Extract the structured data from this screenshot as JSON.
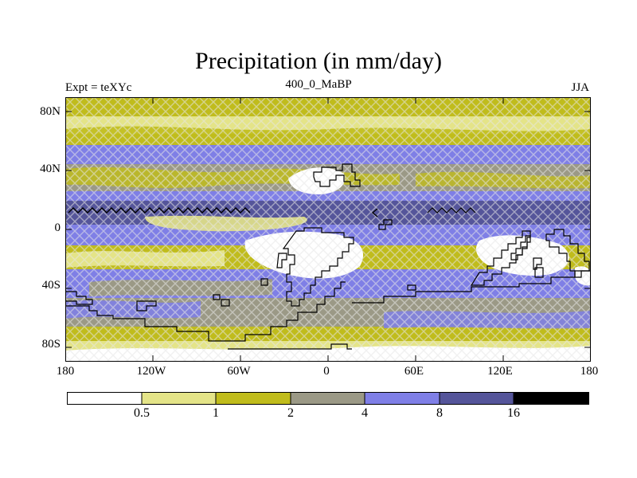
{
  "title": "Precipitation (in mm/day)",
  "experiment_label": "Expt = teXYc",
  "period_label": "400_0_MaBP",
  "season_label": "JJA",
  "lat_ticks": [
    "80N",
    "40N",
    "0",
    "40S",
    "80S"
  ],
  "lon_ticks": [
    "180",
    "120W",
    "60W",
    "0",
    "60E",
    "120E",
    "180"
  ],
  "colorbar": {
    "colors": [
      "#ffffff",
      "#e4e488",
      "#c0bc1c",
      "#9b9986",
      "#7f7fe6",
      "#55559a",
      "#000000"
    ],
    "labels": [
      "0.5",
      "1",
      "2",
      "4",
      "8",
      "16"
    ]
  },
  "colors": {
    "hatch": "#e6e6e6",
    "coast": "#000000"
  }
}
